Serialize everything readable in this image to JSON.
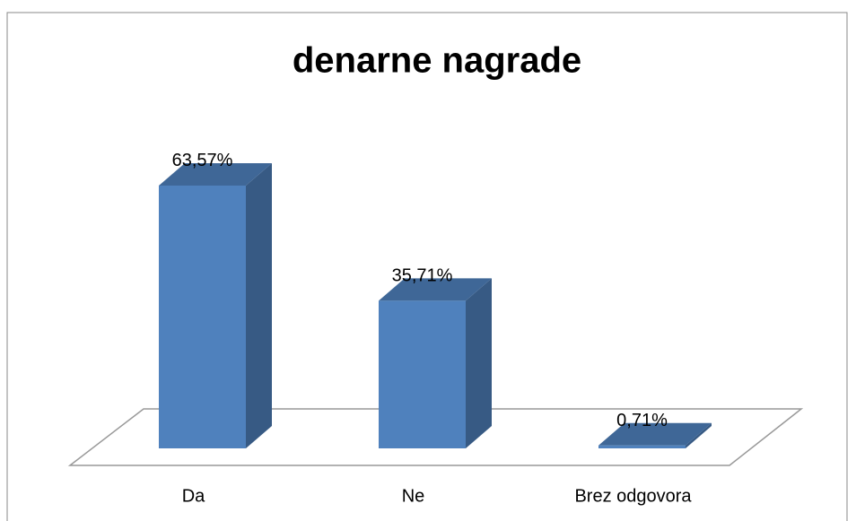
{
  "chart_data": {
    "type": "bar",
    "title": "denarne nagrade",
    "categories": [
      "Da",
      "Ne",
      "Brez odgovora"
    ],
    "values": [
      63.57,
      35.71,
      0.71
    ],
    "value_labels": [
      "63,57%",
      "35,71%",
      "0,71%"
    ],
    "color": "#4f81bd"
  }
}
